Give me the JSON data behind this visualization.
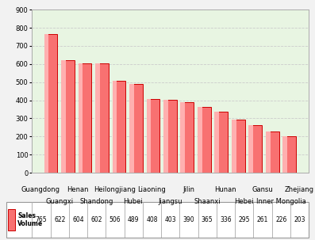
{
  "all_labels": [
    "Guangdong",
    "Guangxi",
    "Henan",
    "Shandong",
    "Heilongjiang",
    "Hubei",
    "Liaoning",
    "Jiangsu",
    "Jilin",
    "Shaanxi",
    "Hunan",
    "Hebei",
    "Gansu",
    "Inner Mongolia",
    "Zhejiang"
  ],
  "values": [
    765,
    622,
    604,
    602,
    506,
    489,
    408,
    403,
    390,
    365,
    336,
    295,
    261,
    226,
    203
  ],
  "bar_color_face": "#f87171",
  "bar_color_left": "#ffb0b0",
  "bar_color_edge": "#cc0000",
  "background_plot": "#e8f5e2",
  "background_fig": "#f2f2f2",
  "ylim": [
    0,
    900
  ],
  "yticks": [
    0,
    100,
    200,
    300,
    400,
    500,
    600,
    700,
    800,
    900
  ],
  "grid_color": "#cccccc",
  "tick_fontsize": 6.0,
  "val_fontsize": 6.0
}
